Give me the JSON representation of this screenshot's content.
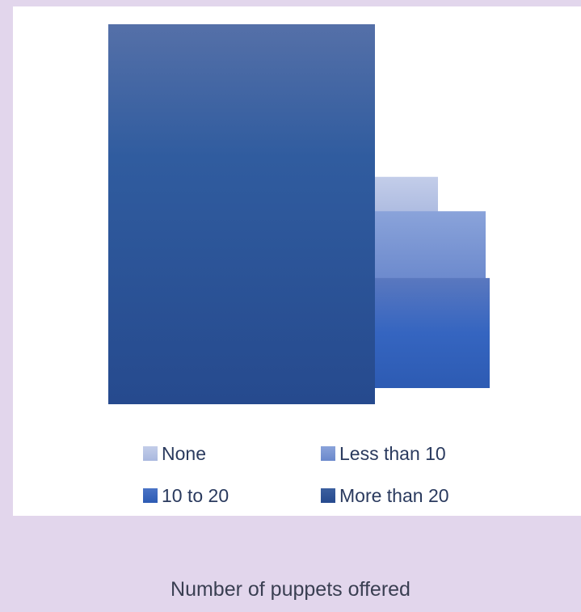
{
  "chart_data": {
    "type": "area",
    "title": "",
    "series": [
      {
        "name": "None",
        "color": "#b7c3e3",
        "value": 1.45
      },
      {
        "name": "Less than 10",
        "color": "#7392d4",
        "value": 2.41
      },
      {
        "name": "10 to 20",
        "color": "#3566c0",
        "value": 3.62
      },
      {
        "name": "More than 20",
        "color": "#2c4f96",
        "value": 12.5
      }
    ]
  },
  "caption": "Number of puppets offered"
}
